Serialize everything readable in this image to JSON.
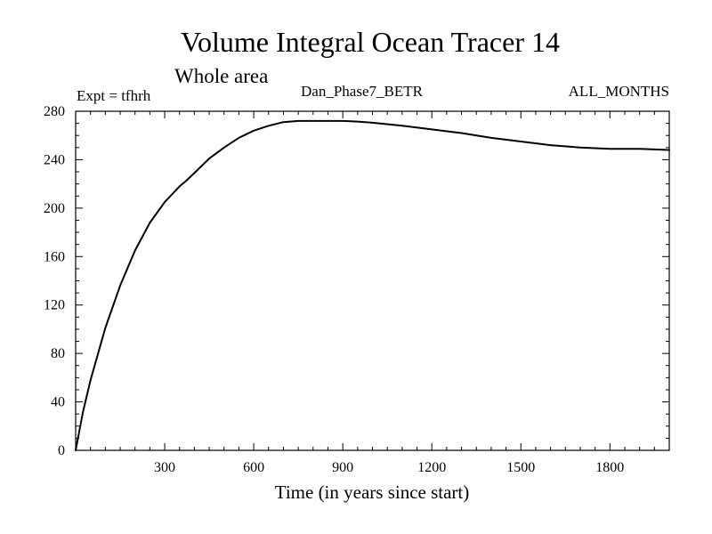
{
  "chart_data": {
    "type": "line",
    "title": "Volume Integral Ocean Tracer 14",
    "subtitle": "Whole area",
    "header_left": "Expt = tfhrh",
    "header_center": "Dan_Phase7_BETR",
    "header_right": "ALL_MONTHS",
    "xlabel": "Time (in years since start)",
    "ylabel": "",
    "xlim": [
      0,
      2000
    ],
    "ylim": [
      0,
      280
    ],
    "xticks": [
      300,
      600,
      900,
      1200,
      1500,
      1800
    ],
    "yticks": [
      0,
      40,
      80,
      120,
      160,
      200,
      240,
      280
    ],
    "grid": false,
    "legend": "none",
    "line_color": "#000000",
    "series": [
      {
        "x": [
          0,
          25,
          50,
          100,
          150,
          200,
          250,
          300,
          350,
          370,
          400,
          450,
          500,
          550,
          600,
          650,
          700,
          750,
          800,
          850,
          900,
          950,
          1000,
          1100,
          1200,
          1300,
          1400,
          1500,
          1600,
          1700,
          1800,
          1900,
          2000
        ],
        "values": [
          0,
          32,
          58,
          101,
          136,
          165,
          188,
          205,
          218,
          222,
          229,
          241,
          250,
          258,
          264,
          268,
          271,
          272,
          272,
          272,
          272,
          271.5,
          270.5,
          268,
          265,
          262,
          258,
          255,
          252,
          250,
          249,
          249,
          248
        ]
      }
    ]
  }
}
